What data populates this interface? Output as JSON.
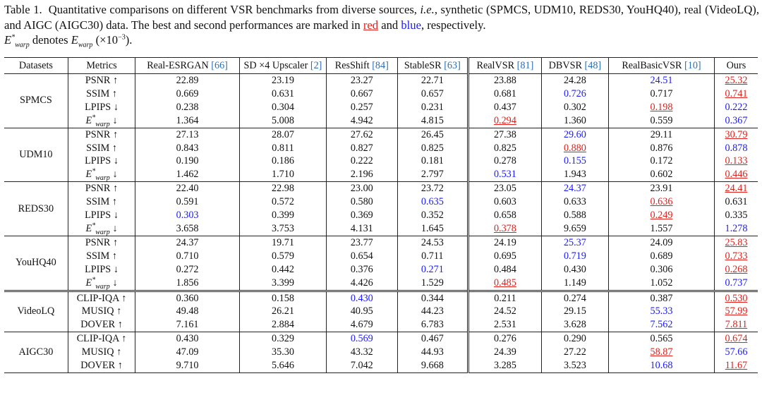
{
  "caption": {
    "label": "Table 1.",
    "text_1": "Quantitative comparisons on different VSR benchmarks from diverse sources,",
    "ie": "i.e.",
    "text_2": ", synthetic (SPMCS, UDM10, REDS30, YouHQ40), real (VideoLQ), and AIGC (AIGC30) data.  The best and second performances are marked in",
    "red_word": "red",
    "text_and": "and",
    "blue_word": "blue",
    "text_3": ", respectively.",
    "text_denotes": "denotes",
    "text_unit": "(×10",
    "text_unit_exp": "−3",
    "text_end": ")."
  },
  "table": {
    "headers": [
      {
        "label": "Datasets",
        "ref": ""
      },
      {
        "label": "Metrics",
        "ref": ""
      },
      {
        "label": "Real-ESRGAN ",
        "ref": "[66]"
      },
      {
        "label": "SD ×4 Upscaler ",
        "ref": "[2]"
      },
      {
        "label": "ResShift ",
        "ref": "[84]"
      },
      {
        "label": "StableSR ",
        "ref": "[63]"
      },
      {
        "label": "RealVSR ",
        "ref": "[81]"
      },
      {
        "label": "DBVSR ",
        "ref": "[48]"
      },
      {
        "label": "RealBasicVSR ",
        "ref": "[10]"
      },
      {
        "label": "Ours",
        "ref": ""
      }
    ],
    "groups": [
      {
        "dataset": "SPMCS",
        "rows": [
          {
            "metric": "PSNR ↑",
            "values": [
              "22.89",
              "23.19",
              "23.27",
              "22.71",
              "23.88",
              "24.28",
              "24.51",
              "25.32"
            ],
            "marks": [
              "",
              "",
              "",
              "",
              "",
              "",
              "second",
              "best"
            ]
          },
          {
            "metric": "SSIM ↑",
            "values": [
              "0.669",
              "0.631",
              "0.667",
              "0.657",
              "0.681",
              "0.726",
              "0.717",
              "0.741"
            ],
            "marks": [
              "",
              "",
              "",
              "",
              "",
              "second",
              "",
              "best"
            ]
          },
          {
            "metric": "LPIPS ↓",
            "values": [
              "0.238",
              "0.304",
              "0.257",
              "0.231",
              "0.437",
              "0.302",
              "0.198",
              "0.222"
            ],
            "marks": [
              "",
              "",
              "",
              "",
              "",
              "",
              "best",
              "second"
            ]
          },
          {
            "metric": "E*warp ↓",
            "values": [
              "1.364",
              "5.008",
              "4.942",
              "4.815",
              "0.294",
              "1.360",
              "0.559",
              "0.367"
            ],
            "marks": [
              "",
              "",
              "",
              "",
              "best",
              "",
              "",
              "second"
            ]
          }
        ]
      },
      {
        "dataset": "UDM10",
        "rows": [
          {
            "metric": "PSNR ↑",
            "values": [
              "27.13",
              "28.07",
              "27.62",
              "26.45",
              "27.38",
              "29.60",
              "29.11",
              "30.79"
            ],
            "marks": [
              "",
              "",
              "",
              "",
              "",
              "second",
              "",
              "best"
            ]
          },
          {
            "metric": "SSIM ↑",
            "values": [
              "0.843",
              "0.811",
              "0.827",
              "0.825",
              "0.825",
              "0.880",
              "0.876",
              "0.878"
            ],
            "marks": [
              "",
              "",
              "",
              "",
              "",
              "best",
              "",
              "second"
            ]
          },
          {
            "metric": "LPIPS ↓",
            "values": [
              "0.190",
              "0.186",
              "0.222",
              "0.181",
              "0.278",
              "0.155",
              "0.172",
              "0.133"
            ],
            "marks": [
              "",
              "",
              "",
              "",
              "",
              "second",
              "",
              "best"
            ]
          },
          {
            "metric": "E*warp ↓",
            "values": [
              "1.462",
              "1.710",
              "2.196",
              "2.797",
              "0.531",
              "1.943",
              "0.602",
              "0.446"
            ],
            "marks": [
              "",
              "",
              "",
              "",
              "second",
              "",
              "",
              "best"
            ]
          }
        ]
      },
      {
        "dataset": "REDS30",
        "rows": [
          {
            "metric": "PSNR ↑",
            "values": [
              "22.40",
              "22.98",
              "23.00",
              "23.72",
              "23.05",
              "24.37",
              "23.91",
              "24.41"
            ],
            "marks": [
              "",
              "",
              "",
              "",
              "",
              "second",
              "",
              "best"
            ]
          },
          {
            "metric": "SSIM ↑",
            "values": [
              "0.591",
              "0.572",
              "0.580",
              "0.635",
              "0.603",
              "0.633",
              "0.636",
              "0.631"
            ],
            "marks": [
              "",
              "",
              "",
              "second",
              "",
              "",
              "best",
              ""
            ]
          },
          {
            "metric": "LPIPS ↓",
            "values": [
              "0.303",
              "0.399",
              "0.369",
              "0.352",
              "0.658",
              "0.588",
              "0.249",
              "0.335"
            ],
            "marks": [
              "second",
              "",
              "",
              "",
              "",
              "",
              "best",
              ""
            ]
          },
          {
            "metric": "E*warp ↓",
            "values": [
              "3.658",
              "3.753",
              "4.131",
              "1.645",
              "0.378",
              "9.659",
              "1.557",
              "1.278"
            ],
            "marks": [
              "",
              "",
              "",
              "",
              "best",
              "",
              "",
              "second"
            ]
          }
        ]
      },
      {
        "dataset": "YouHQ40",
        "rows": [
          {
            "metric": "PSNR ↑",
            "values": [
              "24.37",
              "19.71",
              "23.77",
              "24.53",
              "24.19",
              "25.37",
              "24.09",
              "25.83"
            ],
            "marks": [
              "",
              "",
              "",
              "",
              "",
              "second",
              "",
              "best"
            ]
          },
          {
            "metric": "SSIM ↑",
            "values": [
              "0.710",
              "0.579",
              "0.654",
              "0.711",
              "0.695",
              "0.719",
              "0.689",
              "0.733"
            ],
            "marks": [
              "",
              "",
              "",
              "",
              "",
              "second",
              "",
              "best"
            ]
          },
          {
            "metric": "LPIPS ↓",
            "values": [
              "0.272",
              "0.442",
              "0.376",
              "0.271",
              "0.484",
              "0.430",
              "0.306",
              "0.268"
            ],
            "marks": [
              "",
              "",
              "",
              "second",
              "",
              "",
              "",
              "best"
            ]
          },
          {
            "metric": "E*warp ↓",
            "values": [
              "1.856",
              "3.399",
              "4.426",
              "1.529",
              "0.485",
              "1.149",
              "1.052",
              "0.737"
            ],
            "marks": [
              "",
              "",
              "",
              "",
              "best",
              "",
              "",
              "second"
            ]
          }
        ]
      },
      {
        "dataset": "VideoLQ",
        "rows": [
          {
            "metric": "CLIP-IQA ↑",
            "values": [
              "0.360",
              "0.158",
              "0.430",
              "0.344",
              "0.211",
              "0.274",
              "0.387",
              "0.530"
            ],
            "marks": [
              "",
              "",
              "second",
              "",
              "",
              "",
              "",
              "best"
            ]
          },
          {
            "metric": "MUSIQ ↑",
            "values": [
              "49.48",
              "26.21",
              "40.95",
              "44.23",
              "24.52",
              "29.15",
              "55.33",
              "57.99"
            ],
            "marks": [
              "",
              "",
              "",
              "",
              "",
              "",
              "second",
              "best"
            ]
          },
          {
            "metric": "DOVER ↑",
            "values": [
              "7.161",
              "2.884",
              "4.679",
              "6.783",
              "2.531",
              "3.628",
              "7.562",
              "7.811"
            ],
            "marks": [
              "",
              "",
              "",
              "",
              "",
              "",
              "second",
              "best"
            ]
          }
        ]
      },
      {
        "dataset": "AIGC30",
        "rows": [
          {
            "metric": "CLIP-IQA ↑",
            "values": [
              "0.430",
              "0.329",
              "0.569",
              "0.467",
              "0.276",
              "0.290",
              "0.565",
              "0.674"
            ],
            "marks": [
              "",
              "",
              "second",
              "",
              "",
              "",
              "",
              "best"
            ]
          },
          {
            "metric": "MUSIQ ↑",
            "values": [
              "47.09",
              "35.30",
              "43.32",
              "44.93",
              "24.39",
              "27.22",
              "58.87",
              "57.66"
            ],
            "marks": [
              "",
              "",
              "",
              "",
              "",
              "",
              "best",
              "second"
            ]
          },
          {
            "metric": "DOVER ↑",
            "values": [
              "9.710",
              "5.646",
              "7.042",
              "9.668",
              "3.285",
              "3.523",
              "10.68",
              "11.67"
            ],
            "marks": [
              "",
              "",
              "",
              "",
              "",
              "",
              "second",
              "best"
            ]
          }
        ]
      }
    ]
  }
}
